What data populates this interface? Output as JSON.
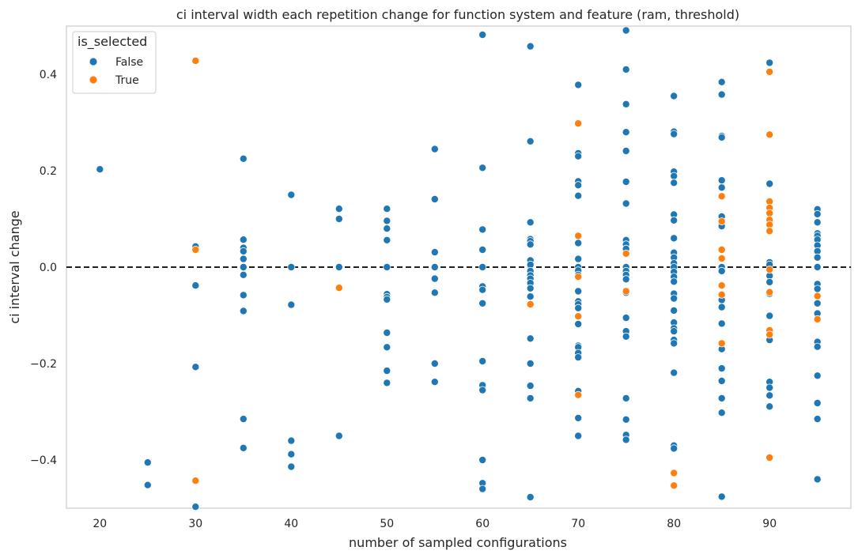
{
  "chart_data": {
    "type": "scatter",
    "title": "ci interval width each repetition change for function system and feature (ram, threshold)",
    "xlabel": "number of sampled configurations",
    "ylabel": "ci interval change",
    "xlim": [
      16.5,
      98.5
    ],
    "ylim": [
      -0.5,
      0.5
    ],
    "xticks": [
      20,
      30,
      40,
      50,
      60,
      70,
      80,
      90
    ],
    "xtick_labels": [
      "20",
      "30",
      "40",
      "50",
      "60",
      "70",
      "80",
      "90"
    ],
    "yticks": [
      -0.4,
      -0.2,
      0.0,
      0.2,
      0.4
    ],
    "ytick_labels": [
      "−0.4",
      "−0.2",
      "0.0",
      "0.2",
      "0.4"
    ],
    "grid": false,
    "reference_line": {
      "y": 0.0,
      "style": "dashed",
      "color": "#000000"
    },
    "legend": {
      "title": "is_selected",
      "placement": "top-left",
      "entries": [
        {
          "label": "False",
          "color": "#1f77b4"
        },
        {
          "label": "True",
          "color": "#ff7f0e"
        }
      ]
    },
    "series": [
      {
        "name": "False",
        "color": "#1f77b4",
        "points": [
          [
            20,
            0.203
          ],
          [
            25,
            -0.405
          ],
          [
            25,
            -0.452
          ],
          [
            30,
            0.043
          ],
          [
            30,
            -0.038
          ],
          [
            30,
            -0.207
          ],
          [
            30,
            -0.497
          ],
          [
            35,
            0.225
          ],
          [
            35,
            0.057
          ],
          [
            35,
            0.04
          ],
          [
            35,
            0.033
          ],
          [
            35,
            0.017
          ],
          [
            35,
            0.0
          ],
          [
            35,
            -0.016
          ],
          [
            35,
            -0.058
          ],
          [
            35,
            -0.091
          ],
          [
            35,
            -0.315
          ],
          [
            35,
            -0.375
          ],
          [
            40,
            0.15
          ],
          [
            40,
            0.0
          ],
          [
            40,
            -0.078
          ],
          [
            40,
            -0.36
          ],
          [
            40,
            -0.388
          ],
          [
            40,
            -0.414
          ],
          [
            45,
            0.121
          ],
          [
            45,
            0.1
          ],
          [
            45,
            0.0
          ],
          [
            45,
            -0.35
          ],
          [
            50,
            0.121
          ],
          [
            50,
            0.096
          ],
          [
            50,
            0.08
          ],
          [
            50,
            0.056
          ],
          [
            50,
            0.0
          ],
          [
            50,
            -0.056
          ],
          [
            50,
            -0.062
          ],
          [
            50,
            -0.067
          ],
          [
            50,
            -0.136
          ],
          [
            50,
            -0.166
          ],
          [
            50,
            -0.215
          ],
          [
            50,
            -0.24
          ],
          [
            55,
            0.245
          ],
          [
            55,
            0.141
          ],
          [
            55,
            0.031
          ],
          [
            55,
            0.0
          ],
          [
            55,
            -0.024
          ],
          [
            55,
            -0.053
          ],
          [
            55,
            -0.2
          ],
          [
            55,
            -0.238
          ],
          [
            60,
            0.482
          ],
          [
            60,
            0.206
          ],
          [
            60,
            0.078
          ],
          [
            60,
            0.036
          ],
          [
            60,
            0.0
          ],
          [
            60,
            -0.04
          ],
          [
            60,
            -0.047
          ],
          [
            60,
            -0.075
          ],
          [
            60,
            -0.195
          ],
          [
            60,
            -0.245
          ],
          [
            60,
            -0.255
          ],
          [
            60,
            -0.4
          ],
          [
            60,
            -0.448
          ],
          [
            60,
            -0.46
          ],
          [
            65,
            0.458
          ],
          [
            65,
            0.261
          ],
          [
            65,
            0.093
          ],
          [
            65,
            0.058
          ],
          [
            65,
            0.054
          ],
          [
            65,
            0.047
          ],
          [
            65,
            0.014
          ],
          [
            65,
            0.005
          ],
          [
            65,
            -0.008
          ],
          [
            65,
            -0.017
          ],
          [
            65,
            -0.024
          ],
          [
            65,
            -0.033
          ],
          [
            65,
            -0.044
          ],
          [
            65,
            -0.061
          ],
          [
            65,
            -0.148
          ],
          [
            65,
            -0.2
          ],
          [
            65,
            -0.246
          ],
          [
            65,
            -0.272
          ],
          [
            65,
            -0.477
          ],
          [
            70,
            0.378
          ],
          [
            70,
            0.236
          ],
          [
            70,
            0.23
          ],
          [
            70,
            0.178
          ],
          [
            70,
            0.17
          ],
          [
            70,
            0.148
          ],
          [
            70,
            0.05
          ],
          [
            70,
            0.017
          ],
          [
            70,
            0.0
          ],
          [
            70,
            -0.007
          ],
          [
            70,
            -0.016
          ],
          [
            70,
            -0.05
          ],
          [
            70,
            -0.071
          ],
          [
            70,
            -0.077
          ],
          [
            70,
            -0.085
          ],
          [
            70,
            -0.118
          ],
          [
            70,
            -0.163
          ],
          [
            70,
            -0.166
          ],
          [
            70,
            -0.178
          ],
          [
            70,
            -0.187
          ],
          [
            70,
            -0.257
          ],
          [
            70,
            -0.313
          ],
          [
            70,
            -0.35
          ],
          [
            75,
            0.491
          ],
          [
            75,
            0.41
          ],
          [
            75,
            0.338
          ],
          [
            75,
            0.28
          ],
          [
            75,
            0.241
          ],
          [
            75,
            0.177
          ],
          [
            75,
            0.132
          ],
          [
            75,
            0.056
          ],
          [
            75,
            0.047
          ],
          [
            75,
            0.038
          ],
          [
            75,
            0.0
          ],
          [
            75,
            -0.008
          ],
          [
            75,
            -0.016
          ],
          [
            75,
            -0.025
          ],
          [
            75,
            -0.053
          ],
          [
            75,
            -0.105
          ],
          [
            75,
            -0.133
          ],
          [
            75,
            -0.144
          ],
          [
            75,
            -0.272
          ],
          [
            75,
            -0.316
          ],
          [
            75,
            -0.348
          ],
          [
            75,
            -0.358
          ],
          [
            80,
            0.355
          ],
          [
            80,
            0.281
          ],
          [
            80,
            0.276
          ],
          [
            80,
            0.198
          ],
          [
            80,
            0.189
          ],
          [
            80,
            0.175
          ],
          [
            80,
            0.109
          ],
          [
            80,
            0.097
          ],
          [
            80,
            0.06
          ],
          [
            80,
            0.03
          ],
          [
            80,
            0.02
          ],
          [
            80,
            0.008
          ],
          [
            80,
            0.0
          ],
          [
            80,
            -0.01
          ],
          [
            80,
            -0.02
          ],
          [
            80,
            -0.03
          ],
          [
            80,
            -0.055
          ],
          [
            80,
            -0.065
          ],
          [
            80,
            -0.09
          ],
          [
            80,
            -0.115
          ],
          [
            80,
            -0.127
          ],
          [
            80,
            -0.133
          ],
          [
            80,
            -0.151
          ],
          [
            80,
            -0.158
          ],
          [
            80,
            -0.219
          ],
          [
            80,
            -0.37
          ],
          [
            80,
            -0.376
          ],
          [
            85,
            0.384
          ],
          [
            85,
            0.358
          ],
          [
            85,
            0.272
          ],
          [
            85,
            0.269
          ],
          [
            85,
            0.18
          ],
          [
            85,
            0.165
          ],
          [
            85,
            0.105
          ],
          [
            85,
            0.085
          ],
          [
            85,
            0.0
          ],
          [
            85,
            -0.008
          ],
          [
            85,
            -0.06
          ],
          [
            85,
            -0.068
          ],
          [
            85,
            -0.083
          ],
          [
            85,
            -0.117
          ],
          [
            85,
            -0.17
          ],
          [
            85,
            -0.21
          ],
          [
            85,
            -0.236
          ],
          [
            85,
            -0.272
          ],
          [
            85,
            -0.302
          ],
          [
            85,
            -0.476
          ],
          [
            90,
            0.424
          ],
          [
            90,
            0.173
          ],
          [
            90,
            0.01
          ],
          [
            90,
            0.005
          ],
          [
            90,
            -0.018
          ],
          [
            90,
            -0.031
          ],
          [
            90,
            -0.055
          ],
          [
            90,
            -0.101
          ],
          [
            90,
            -0.151
          ],
          [
            90,
            -0.238
          ],
          [
            90,
            -0.25
          ],
          [
            90,
            -0.266
          ],
          [
            90,
            -0.289
          ],
          [
            95,
            0.12
          ],
          [
            95,
            0.11
          ],
          [
            95,
            0.093
          ],
          [
            95,
            0.07
          ],
          [
            95,
            0.065
          ],
          [
            95,
            0.057
          ],
          [
            95,
            0.045
          ],
          [
            95,
            0.033
          ],
          [
            95,
            0.02
          ],
          [
            95,
            0.0
          ],
          [
            95,
            -0.035
          ],
          [
            95,
            -0.045
          ],
          [
            95,
            -0.062
          ],
          [
            95,
            -0.075
          ],
          [
            95,
            -0.096
          ],
          [
            95,
            -0.155
          ],
          [
            95,
            -0.165
          ],
          [
            95,
            -0.225
          ],
          [
            95,
            -0.282
          ],
          [
            95,
            -0.315
          ],
          [
            95,
            -0.44
          ]
        ]
      },
      {
        "name": "True",
        "color": "#ff7f0e",
        "points": [
          [
            30,
            0.428
          ],
          [
            30,
            0.036
          ],
          [
            30,
            -0.443
          ],
          [
            45,
            -0.043
          ],
          [
            65,
            -0.077
          ],
          [
            70,
            0.298
          ],
          [
            70,
            0.065
          ],
          [
            70,
            -0.02
          ],
          [
            70,
            -0.102
          ],
          [
            70,
            -0.265
          ],
          [
            75,
            0.028
          ],
          [
            75,
            -0.05
          ],
          [
            80,
            -0.427
          ],
          [
            80,
            -0.453
          ],
          [
            85,
            0.147
          ],
          [
            85,
            0.095
          ],
          [
            85,
            0.036
          ],
          [
            85,
            0.018
          ],
          [
            85,
            -0.038
          ],
          [
            85,
            -0.057
          ],
          [
            85,
            -0.158
          ],
          [
            90,
            0.405
          ],
          [
            90,
            0.275
          ],
          [
            90,
            0.136
          ],
          [
            90,
            0.123
          ],
          [
            90,
            0.112
          ],
          [
            90,
            0.098
          ],
          [
            90,
            0.088
          ],
          [
            90,
            0.075
          ],
          [
            90,
            -0.005
          ],
          [
            90,
            -0.052
          ],
          [
            90,
            -0.131
          ],
          [
            90,
            -0.14
          ],
          [
            90,
            -0.395
          ],
          [
            95,
            -0.06
          ],
          [
            95,
            -0.108
          ]
        ]
      }
    ]
  }
}
